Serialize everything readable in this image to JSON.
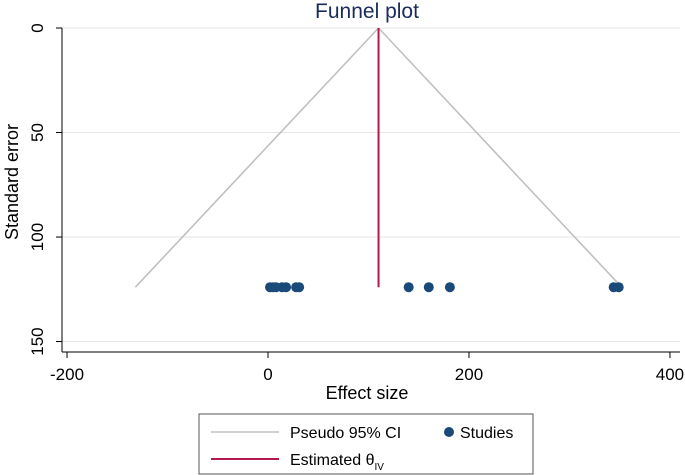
{
  "chart_data": {
    "type": "scatter",
    "title": "Funnel plot",
    "xlabel": "Effect size",
    "ylabel": "Standard error",
    "xlim": [
      -205,
      410
    ],
    "ylim": [
      0,
      155
    ],
    "y_reversed": true,
    "xticks": [
      -200,
      0,
      200,
      400
    ],
    "yticks": [
      0,
      50,
      100,
      150
    ],
    "grid": "horizontal",
    "colors": {
      "ci_line": "#c0c0c0",
      "estimate_line": "#b5174f",
      "points": "#1a4a7a",
      "grid": "#e6e6e6",
      "title": "#1a2b5c"
    },
    "pseudo_ci": {
      "apex": [
        110,
        0
      ],
      "left_base": [
        -132,
        124
      ],
      "right_base": [
        352,
        124
      ]
    },
    "estimate": {
      "x": 110,
      "y_range": [
        0,
        124
      ]
    },
    "studies": {
      "x": [
        2,
        5,
        8,
        14,
        18,
        28,
        31,
        140,
        160,
        181,
        344,
        349
      ],
      "y": [
        124,
        124,
        124,
        124,
        124,
        124,
        124,
        124,
        124,
        124,
        124,
        124
      ]
    },
    "legend": {
      "position": "bottom",
      "items": [
        {
          "label": "Pseudo 95% CI",
          "kind": "line",
          "color": "#c0c0c0"
        },
        {
          "label": "Studies",
          "kind": "marker",
          "color": "#1a4a7a"
        },
        {
          "label": "Estimated θ",
          "sub": "IV",
          "kind": "line",
          "color": "#b5174f"
        }
      ]
    }
  }
}
